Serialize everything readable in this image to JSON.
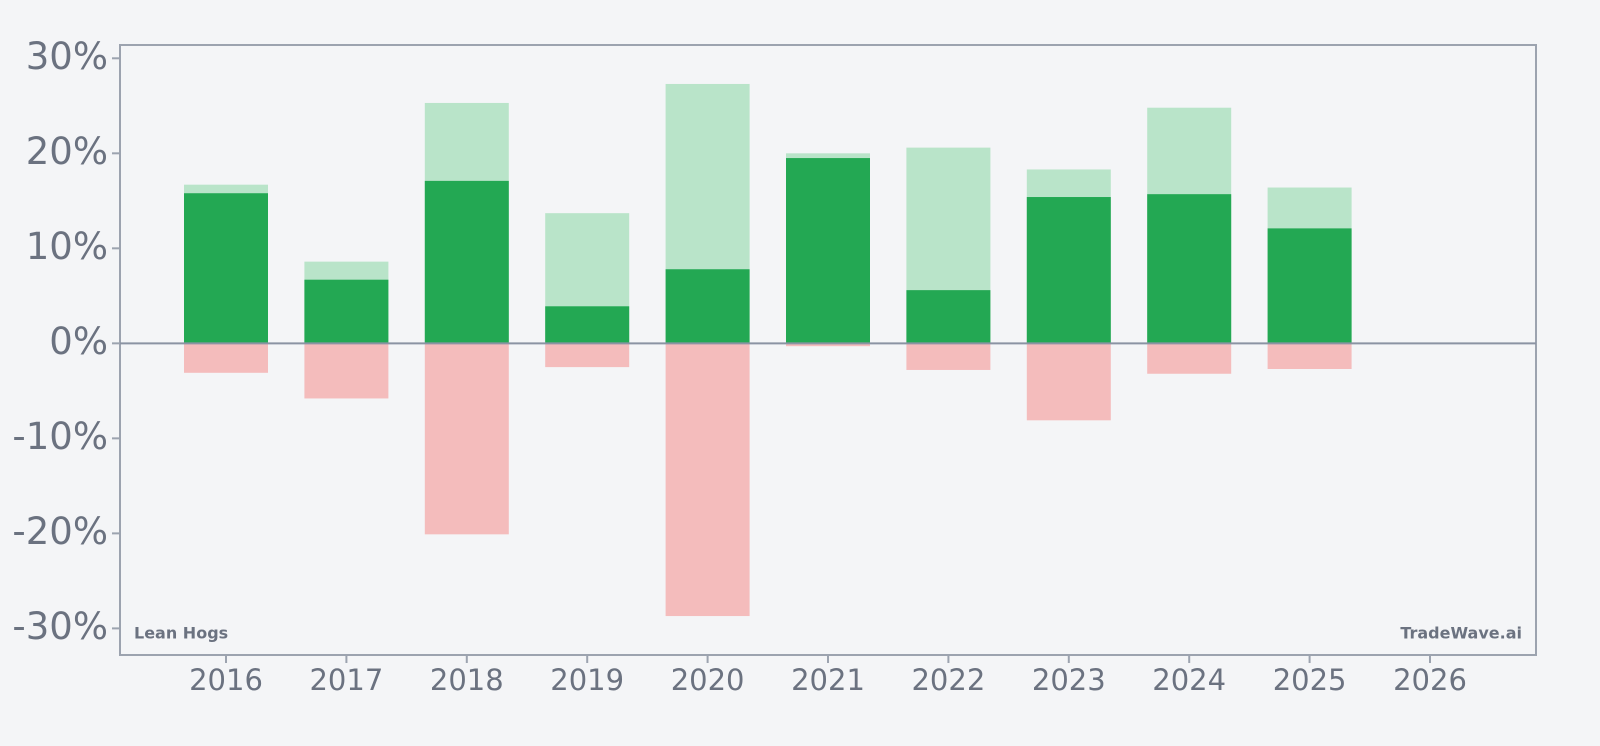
{
  "chart_data": {
    "type": "bar",
    "categories": [
      "2016",
      "2017",
      "2018",
      "2019",
      "2020",
      "2021",
      "2022",
      "2023",
      "2024",
      "2025",
      "2026"
    ],
    "series": [
      {
        "color": "#b9e4c9",
        "values": [
          16.7,
          8.6,
          25.3,
          13.7,
          27.3,
          20.0,
          20.6,
          18.3,
          24.8,
          16.4,
          null
        ]
      },
      {
        "color": "#f4bcbc",
        "values": [
          -3.1,
          -5.8,
          -20.1,
          -2.5,
          -28.7,
          -0.3,
          -2.8,
          -8.1,
          -3.2,
          -2.7,
          null
        ]
      },
      {
        "color": "#23a853",
        "values": [
          15.8,
          6.7,
          17.1,
          3.9,
          7.8,
          19.5,
          5.6,
          15.4,
          15.7,
          12.1,
          null
        ]
      }
    ],
    "ylim": [
      -32.8,
      31.4
    ],
    "yticks": [
      {
        "value": 30,
        "label": "30%"
      },
      {
        "value": 20,
        "label": "20%"
      },
      {
        "value": 10,
        "label": "10%"
      },
      {
        "value": 0,
        "label": "0%"
      },
      {
        "value": -10,
        "label": "-10%"
      },
      {
        "value": -20,
        "label": "-20%"
      },
      {
        "value": -30,
        "label": "-30%"
      }
    ],
    "annotations": [
      "Lean Hogs",
      "TradeWave.ai"
    ]
  }
}
